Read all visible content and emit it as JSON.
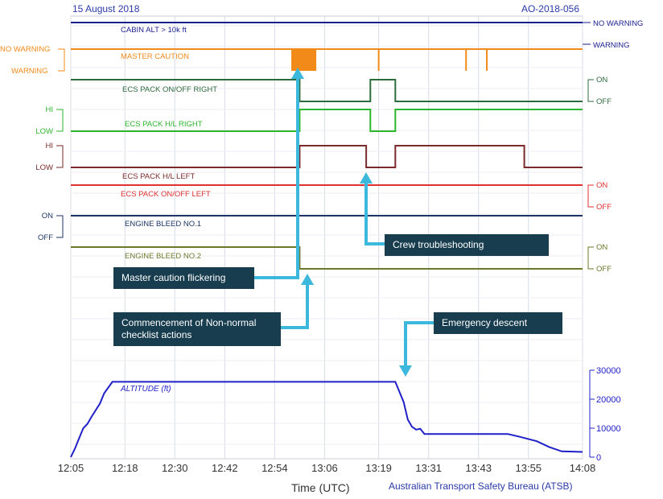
{
  "header": {
    "date": "15 August 2018",
    "id": "AO-2018-056"
  },
  "footer": {
    "xlabel": "Time (UTC)",
    "source": "Australian Transport Safety Bureau (ATSB)"
  },
  "callouts": {
    "flicker": "Master caution flickering",
    "checklist": "Commencement of Non-normal checklist actions",
    "troubleshoot": "Crew troubleshooting",
    "descent": "Emergency descent"
  },
  "chart_data": {
    "type": "line",
    "x_ticks": [
      "12:05",
      "12:18",
      "12:30",
      "12:42",
      "12:54",
      "13:06",
      "13:19",
      "13:31",
      "13:43",
      "13:55",
      "14:08"
    ],
    "discrete_series": [
      {
        "name": "CABIN ALT > 10k ft",
        "color": "#1a1f8f",
        "right_states": [
          "NO WARNING",
          "WARNING"
        ],
        "left_states": [],
        "segments": [
          [
            "12:05",
            "14:08",
            "low"
          ]
        ]
      },
      {
        "name": "MASTER CAUTION",
        "color": "#f28a1a",
        "left_states": [
          "NO WARNING",
          "WARNING"
        ],
        "right_states": [],
        "segments": [
          [
            "12:05",
            "14:08",
            "low"
          ]
        ],
        "pulses": [
          "12:58-13:04 (flickering)",
          "13:19",
          "13:40",
          "13:45"
        ]
      },
      {
        "name": "ECS PACK ON/OFF RIGHT",
        "color": "#2e6b3c",
        "right_states": [
          "ON",
          "OFF"
        ],
        "left_states": [],
        "segments": [
          [
            "12:05",
            "13:00",
            "ON"
          ],
          [
            "13:00",
            "13:17",
            "OFF"
          ],
          [
            "13:17",
            "13:23",
            "ON"
          ],
          [
            "13:23",
            "14:08",
            "OFF"
          ]
        ]
      },
      {
        "name": "ECS PACK H/L RIGHT",
        "color": "#2db52d",
        "left_states": [
          "HI",
          "LOW"
        ],
        "right_states": [],
        "segments": [
          [
            "12:05",
            "13:00",
            "LOW"
          ],
          [
            "13:00",
            "13:17",
            "HI"
          ],
          [
            "13:17",
            "13:23",
            "LOW"
          ],
          [
            "13:23",
            "14:08",
            "HI"
          ]
        ]
      },
      {
        "name": "ECS PACK H/L LEFT",
        "color": "#7a2a2a",
        "left_states": [
          "HI",
          "LOW"
        ],
        "right_states": [],
        "segments": [
          [
            "12:05",
            "13:00",
            "LOW"
          ],
          [
            "13:00",
            "13:16",
            "HI"
          ],
          [
            "13:16",
            "13:23",
            "LOW"
          ],
          [
            "13:23",
            "13:54",
            "HI"
          ],
          [
            "13:54",
            "14:08",
            "LOW"
          ]
        ]
      },
      {
        "name": "ECS PACK ON/OFF LEFT",
        "color": "#e03030",
        "right_states": [
          "ON",
          "OFF"
        ],
        "left_states": [],
        "segments": [
          [
            "12:05",
            "14:08",
            "ON"
          ]
        ]
      },
      {
        "name": "ENGINE BLEED NO.1",
        "color": "#1c3566",
        "left_states": [
          "ON",
          "OFF"
        ],
        "right_states": [],
        "segments": [
          [
            "12:05",
            "14:08",
            "ON"
          ]
        ]
      },
      {
        "name": "ENGINE BLEED NO.2",
        "color": "#6b7a2a",
        "right_states": [
          "ON",
          "OFF"
        ],
        "left_states": [],
        "segments": [
          [
            "12:05",
            "13:00",
            "ON"
          ],
          [
            "13:00",
            "14:08",
            "OFF"
          ]
        ]
      }
    ],
    "altitude": {
      "name": "ALTITUDE (ft)",
      "color": "#2020c8",
      "y_ticks": [
        0,
        10000,
        20000,
        30000
      ],
      "ylim": [
        0,
        30000
      ],
      "points": [
        [
          "12:05",
          0
        ],
        [
          "12:06",
          3000
        ],
        [
          "12:07",
          6500
        ],
        [
          "12:08",
          10000
        ],
        [
          "12:09",
          11500
        ],
        [
          "12:10",
          14000
        ],
        [
          "12:12",
          18500
        ],
        [
          "12:13",
          22000
        ],
        [
          "12:15",
          26000
        ],
        [
          "13:23",
          26000
        ],
        [
          "13:25",
          19000
        ],
        [
          "13:26",
          13000
        ],
        [
          "13:27",
          10500
        ],
        [
          "13:28",
          9500
        ],
        [
          "13:29",
          9800
        ],
        [
          "13:30",
          8000
        ],
        [
          "13:50",
          8000
        ],
        [
          "13:53",
          7000
        ],
        [
          "13:57",
          5500
        ],
        [
          "14:00",
          3500
        ],
        [
          "14:03",
          2000
        ],
        [
          "14:08",
          1800
        ]
      ]
    }
  }
}
